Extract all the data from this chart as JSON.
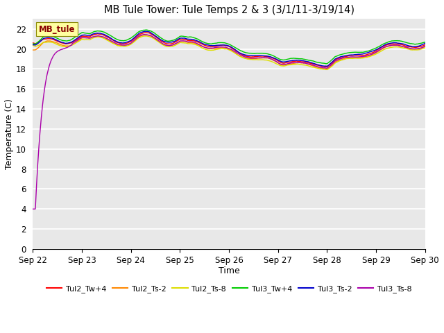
{
  "title": "MB Tule Tower: Tule Temps 2 & 3 (3/1/11-3/19/14)",
  "xlabel": "Time",
  "ylabel": "Temperature (C)",
  "ylim": [
    0,
    23
  ],
  "yticks": [
    0,
    2,
    4,
    6,
    8,
    10,
    12,
    14,
    16,
    18,
    20,
    22
  ],
  "xlim": [
    0,
    8
  ],
  "xtick_labels": [
    "Sep 22",
    "Sep 23",
    "Sep 24",
    "Sep 25",
    "Sep 26",
    "Sep 27",
    "Sep 28",
    "Sep 29",
    "Sep 30"
  ],
  "bg_color": "#e8e8e8",
  "legend_box_color": "#ffffa0",
  "legend_box_text": "MB_tule",
  "legend_box_text_color": "#880000",
  "series_colors": {
    "Tul2_Tw+4": "#ff0000",
    "Tul2_Ts-2": "#ff8800",
    "Tul2_Ts-8": "#dddd00",
    "Tul3_Tw+4": "#00cc00",
    "Tul3_Ts-2": "#0000cc",
    "Tul3_Ts-8": "#aa00aa"
  },
  "figsize": [
    6.4,
    4.8
  ],
  "dpi": 100
}
